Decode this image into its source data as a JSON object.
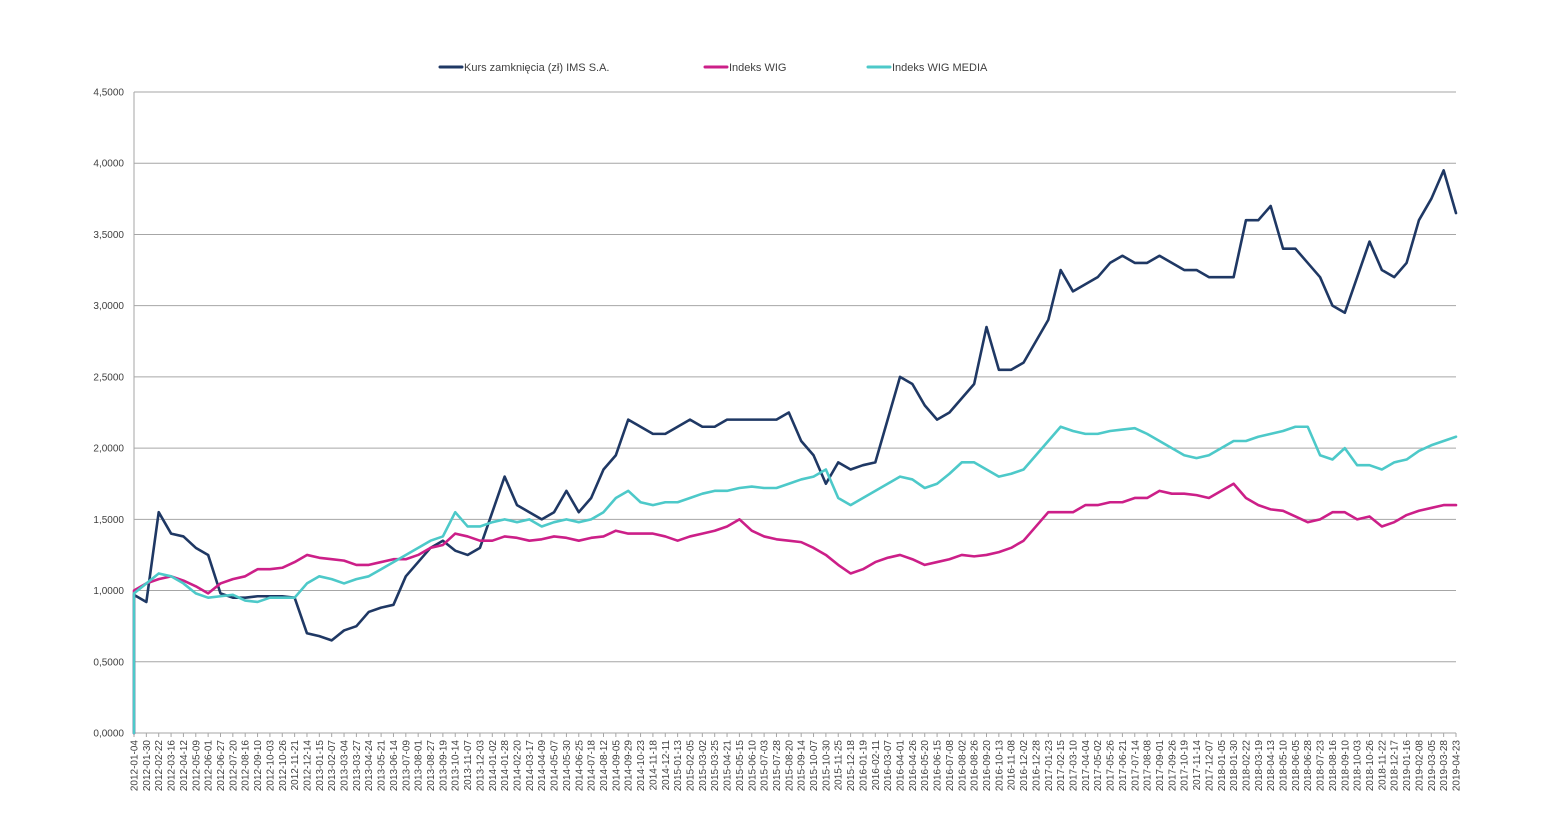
{
  "chart_data": {
    "type": "line",
    "title": "",
    "xlabel": "",
    "ylabel": "",
    "ylim": [
      0,
      4.5
    ],
    "yticks": [
      "0,0000",
      "0,5000",
      "1,0000",
      "1,5000",
      "2,0000",
      "2,5000",
      "3,0000",
      "3,5000",
      "4,0000",
      "4,5000"
    ],
    "grid": "horizontal",
    "legend_position": "top",
    "x": [
      "2012-01-04",
      "2012-01-30",
      "2012-02-22",
      "2012-03-16",
      "2012-04-12",
      "2012-05-09",
      "2012-06-01",
      "2012-06-27",
      "2012-07-20",
      "2012-08-16",
      "2012-09-10",
      "2012-10-03",
      "2012-10-26",
      "2012-11-21",
      "2012-12-14",
      "2013-01-15",
      "2013-02-07",
      "2013-03-04",
      "2013-03-27",
      "2013-04-24",
      "2013-05-21",
      "2013-06-14",
      "2013-07-09",
      "2013-08-01",
      "2013-08-27",
      "2013-09-19",
      "2013-10-14",
      "2013-11-07",
      "2013-12-03",
      "2014-01-02",
      "2014-01-28",
      "2014-02-20",
      "2014-03-17",
      "2014-04-09",
      "2014-05-07",
      "2014-05-30",
      "2014-06-25",
      "2014-07-18",
      "2014-08-12",
      "2014-09-05",
      "2014-09-29",
      "2014-10-23",
      "2014-11-18",
      "2014-12-11",
      "2015-01-13",
      "2015-02-05",
      "2015-03-02",
      "2015-03-25",
      "2015-04-21",
      "2015-05-15",
      "2015-06-10",
      "2015-07-03",
      "2015-07-28",
      "2015-08-20",
      "2015-09-14",
      "2015-10-07",
      "2015-10-30",
      "2015-11-25",
      "2015-12-18",
      "2016-01-19",
      "2016-02-11",
      "2016-03-07",
      "2016-04-01",
      "2016-04-26",
      "2016-05-20",
      "2016-06-15",
      "2016-07-08",
      "2016-08-02",
      "2016-08-26",
      "2016-09-20",
      "2016-10-13",
      "2016-11-08",
      "2016-12-02",
      "2016-12-28",
      "2017-01-23",
      "2017-02-15",
      "2017-03-10",
      "2017-04-04",
      "2017-05-02",
      "2017-05-26",
      "2017-06-21",
      "2017-07-14",
      "2017-08-08",
      "2017-09-01",
      "2017-09-26",
      "2017-10-19",
      "2017-11-14",
      "2017-12-07",
      "2018-01-05",
      "2018-01-30",
      "2018-02-22",
      "2018-03-19",
      "2018-04-13",
      "2018-05-10",
      "2018-06-05",
      "2018-06-28",
      "2018-07-23",
      "2018-08-16",
      "2018-09-10",
      "2018-10-03",
      "2018-10-26",
      "2018-11-22",
      "2018-12-17",
      "2019-01-16",
      "2019-02-08",
      "2019-03-05",
      "2019-03-28",
      "2019-04-23"
    ],
    "series": [
      {
        "name": "Kurs zamknięcia (zł) IMS S.A.",
        "color": "#1f3864",
        "values": [
          0.97,
          0.92,
          1.55,
          1.4,
          1.38,
          1.3,
          1.25,
          0.98,
          0.95,
          0.95,
          0.96,
          0.96,
          0.96,
          0.95,
          0.7,
          0.68,
          0.65,
          0.72,
          0.75,
          0.85,
          0.88,
          0.9,
          1.1,
          1.2,
          1.3,
          1.35,
          1.28,
          1.25,
          1.3,
          1.55,
          1.8,
          1.6,
          1.55,
          1.5,
          1.55,
          1.7,
          1.55,
          1.65,
          1.85,
          1.95,
          2.2,
          2.15,
          2.1,
          2.1,
          2.15,
          2.2,
          2.15,
          2.15,
          2.2,
          2.2,
          2.2,
          2.2,
          2.2,
          2.25,
          2.05,
          1.95,
          1.75,
          1.9,
          1.85,
          1.88,
          1.9,
          2.2,
          2.5,
          2.45,
          2.3,
          2.2,
          2.25,
          2.35,
          2.45,
          2.85,
          2.55,
          2.55,
          2.6,
          2.75,
          2.9,
          3.25,
          3.1,
          3.15,
          3.2,
          3.3,
          3.35,
          3.3,
          3.3,
          3.35,
          3.3,
          3.25,
          3.25,
          3.2,
          3.2,
          3.2,
          3.6,
          3.6,
          3.7,
          3.4,
          3.4,
          3.3,
          3.2,
          3.0,
          2.95,
          3.2,
          3.45,
          3.25,
          3.2,
          3.3,
          3.6,
          3.75,
          3.95,
          3.65
        ]
      },
      {
        "name": "Indeks WIG",
        "color": "#cc1f88",
        "values": [
          1.0,
          1.05,
          1.08,
          1.1,
          1.07,
          1.03,
          0.98,
          1.05,
          1.08,
          1.1,
          1.15,
          1.15,
          1.16,
          1.2,
          1.25,
          1.23,
          1.22,
          1.21,
          1.18,
          1.18,
          1.2,
          1.22,
          1.22,
          1.25,
          1.3,
          1.32,
          1.4,
          1.38,
          1.35,
          1.35,
          1.38,
          1.37,
          1.35,
          1.36,
          1.38,
          1.37,
          1.35,
          1.37,
          1.38,
          1.42,
          1.4,
          1.4,
          1.4,
          1.38,
          1.35,
          1.38,
          1.4,
          1.42,
          1.45,
          1.5,
          1.42,
          1.38,
          1.36,
          1.35,
          1.34,
          1.3,
          1.25,
          1.18,
          1.12,
          1.15,
          1.2,
          1.23,
          1.25,
          1.22,
          1.18,
          1.2,
          1.22,
          1.25,
          1.24,
          1.25,
          1.27,
          1.3,
          1.35,
          1.45,
          1.55,
          1.55,
          1.55,
          1.6,
          1.6,
          1.62,
          1.62,
          1.65,
          1.65,
          1.7,
          1.68,
          1.68,
          1.67,
          1.65,
          1.7,
          1.75,
          1.65,
          1.6,
          1.57,
          1.56,
          1.52,
          1.48,
          1.5,
          1.55,
          1.55,
          1.5,
          1.52,
          1.45,
          1.48,
          1.53,
          1.56,
          1.58,
          1.6,
          1.6
        ]
      },
      {
        "name": "Indeks WIG MEDIA",
        "color": "#4dc9c9",
        "values": [
          0.98,
          1.05,
          1.12,
          1.1,
          1.05,
          0.98,
          0.95,
          0.96,
          0.97,
          0.93,
          0.92,
          0.95,
          0.95,
          0.95,
          1.05,
          1.1,
          1.08,
          1.05,
          1.08,
          1.1,
          1.15,
          1.2,
          1.25,
          1.3,
          1.35,
          1.38,
          1.55,
          1.45,
          1.45,
          1.48,
          1.5,
          1.48,
          1.5,
          1.45,
          1.48,
          1.5,
          1.48,
          1.5,
          1.55,
          1.65,
          1.7,
          1.62,
          1.6,
          1.62,
          1.62,
          1.65,
          1.68,
          1.7,
          1.7,
          1.72,
          1.73,
          1.72,
          1.72,
          1.75,
          1.78,
          1.8,
          1.85,
          1.65,
          1.6,
          1.65,
          1.7,
          1.75,
          1.8,
          1.78,
          1.72,
          1.75,
          1.82,
          1.9,
          1.9,
          1.85,
          1.8,
          1.82,
          1.85,
          1.95,
          2.05,
          2.15,
          2.12,
          2.1,
          2.1,
          2.12,
          2.13,
          2.14,
          2.1,
          2.05,
          2.0,
          1.95,
          1.93,
          1.95,
          2.0,
          2.05,
          2.05,
          2.08,
          2.1,
          2.12,
          2.15,
          2.15,
          1.95,
          1.92,
          2.0,
          1.88,
          1.88,
          1.85,
          1.9,
          1.92,
          1.98,
          2.02,
          2.05,
          2.08
        ]
      }
    ]
  }
}
